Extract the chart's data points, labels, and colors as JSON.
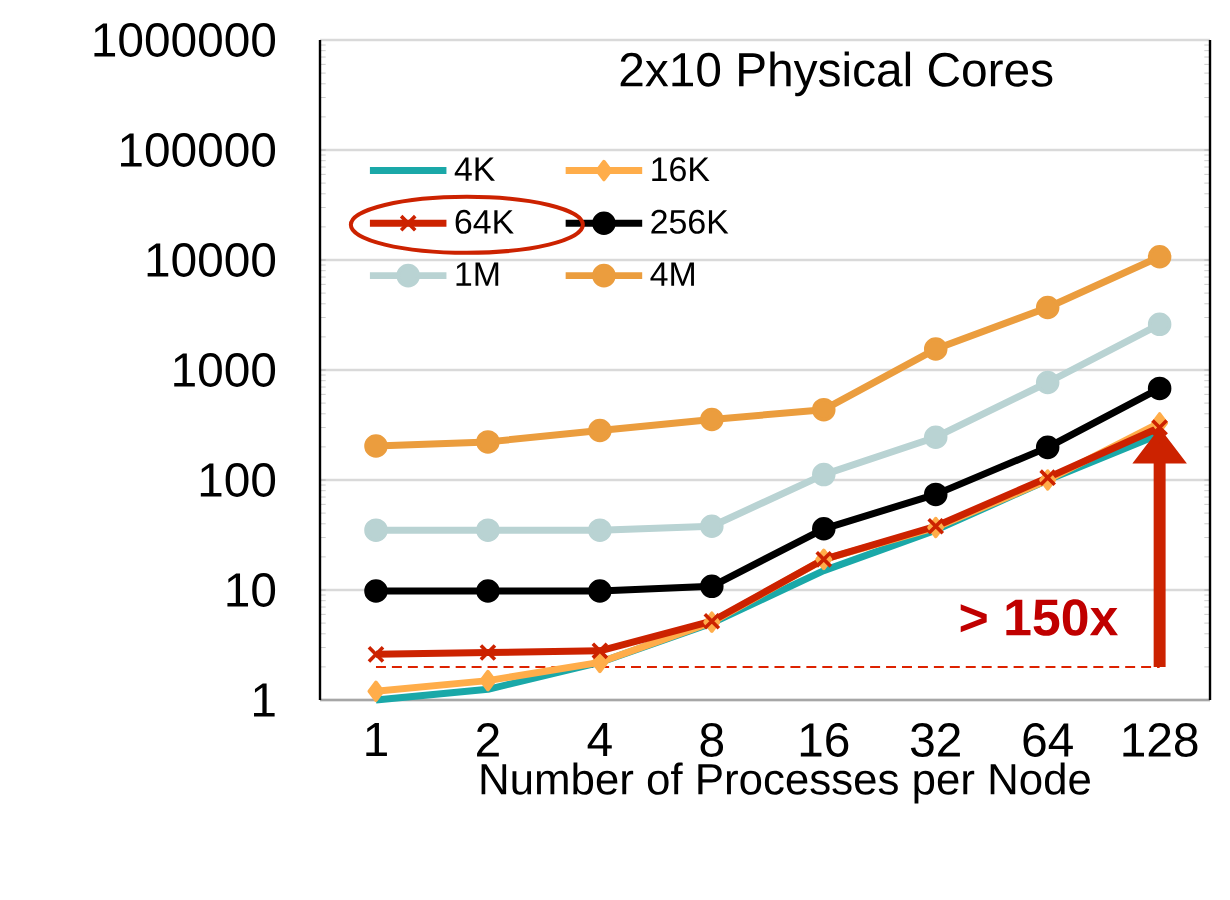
{
  "chart_data": {
    "type": "line",
    "title": "2x10 Physical Cores",
    "xlabel": "Number of Processes per Node",
    "categories": [
      "1",
      "2",
      "4",
      "8",
      "16",
      "32",
      "64",
      "128"
    ],
    "series": [
      {
        "name": "4K",
        "color": "#1aa8a8",
        "marker": "none",
        "values": [
          1.0,
          1.25,
          2.2,
          5.0,
          15,
          35,
          100,
          260
        ]
      },
      {
        "name": "16K",
        "color": "#ffad4a",
        "marker": "diamond",
        "values": [
          1.2,
          1.5,
          2.2,
          5.1,
          19,
          37,
          100,
          330
        ]
      },
      {
        "name": "64K",
        "color": "#cc2200",
        "marker": "cross",
        "values": [
          2.6,
          2.7,
          2.8,
          5.2,
          19,
          38,
          105,
          300
        ]
      },
      {
        "name": "256K",
        "color": "#000000",
        "marker": "circle",
        "values": [
          9.8,
          9.8,
          9.8,
          10.8,
          36,
          74,
          198,
          680
        ]
      },
      {
        "name": "1M",
        "color": "#b9d3d3",
        "marker": "circle",
        "values": [
          35,
          35,
          35,
          38,
          112,
          245,
          770,
          2600
        ]
      },
      {
        "name": "4M",
        "color": "#eb9d3e",
        "marker": "circle",
        "values": [
          204,
          222,
          282,
          355,
          436,
          1550,
          3700,
          10700
        ]
      }
    ],
    "log": "y",
    "ylim": [
      1,
      1000000
    ],
    "yticks": [
      1,
      10,
      100,
      1000,
      10000,
      100000,
      1000000
    ],
    "grid": "y",
    "legend": "top left",
    "line_style": "solid",
    "ref_lines": [
      {
        "axis": "y",
        "value": 2,
        "color": "#dd2200",
        "line_style": "dashed"
      }
    ],
    "annotations": [
      "> 150x"
    ]
  }
}
